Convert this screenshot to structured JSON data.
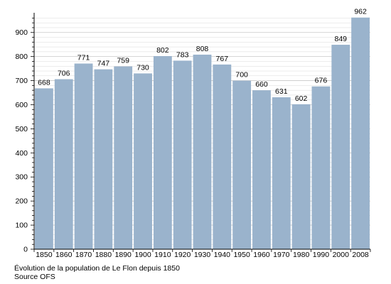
{
  "chart_data": {
    "type": "bar",
    "categories": [
      "1850",
      "1860",
      "1870",
      "1880",
      "1890",
      "1900",
      "1910",
      "1920",
      "1930",
      "1940",
      "1950",
      "1960",
      "1970",
      "1980",
      "1990",
      "2000",
      "2008"
    ],
    "values": [
      668,
      706,
      771,
      747,
      759,
      730,
      802,
      783,
      808,
      767,
      700,
      660,
      631,
      602,
      676,
      849,
      962
    ],
    "ylim": [
      0,
      970
    ],
    "yticks": [
      0,
      100,
      200,
      300,
      400,
      500,
      600,
      700,
      800,
      900
    ],
    "grid": true,
    "bar_color": "#9ab3cc",
    "grid_color": "#c8c8c8"
  },
  "caption": {
    "line1": "Évolution de la population de Le Flon depuis 1850",
    "line2": "Source OFS"
  }
}
